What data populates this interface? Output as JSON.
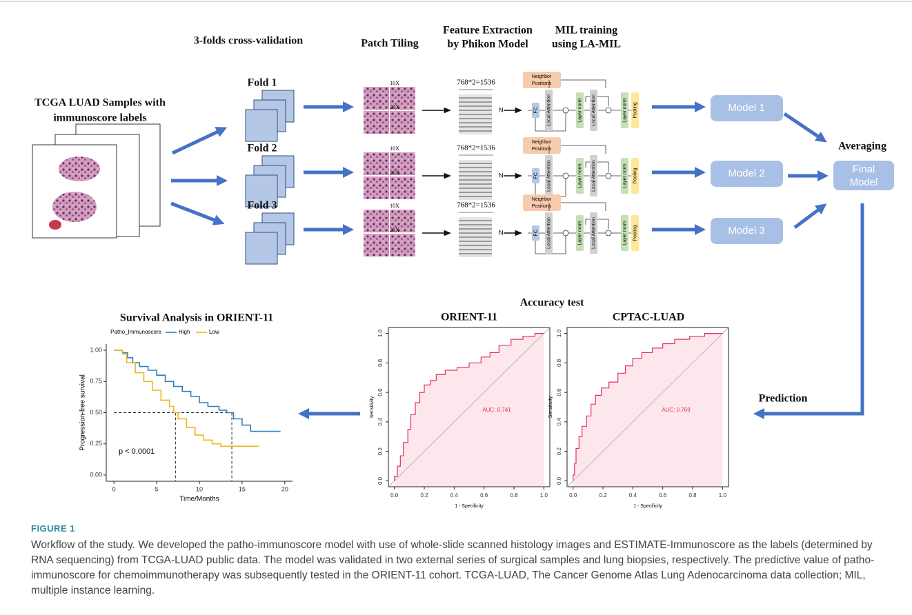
{
  "header": {
    "cv_title": "3-folds cross-validation",
    "patch_tiling": "Patch Tiling",
    "feature_extraction": [
      "Feature Extraction",
      "by Phikon Model"
    ],
    "mil_training": [
      "MIL training",
      "using LA-MIL"
    ]
  },
  "input": [
    "TCGA LUAD Samples with",
    "immunoscore labels"
  ],
  "folds": [
    "Fold 1",
    "Fold 2",
    "Fold 3"
  ],
  "magnifications": [
    "10X",
    "20X"
  ],
  "feature_dim": "768*2=1536",
  "feature_rows": "N",
  "mil_block": {
    "neighbor": [
      "Neighbor",
      "Positions"
    ],
    "fc": "FC",
    "attention": "Local Attention",
    "norm": "Layer norm",
    "pooling": "Pooling"
  },
  "models": [
    "Model 1",
    "Model 2",
    "Model 3"
  ],
  "averaging": "Averaging",
  "final_model": [
    "Final",
    "Model"
  ],
  "prediction": "Prediction",
  "accuracy_test": "Accuracy test",
  "chart_data": [
    {
      "type": "line",
      "title": "Survival Analysis in ORIENT-11",
      "legend_title": "Patho_Immunoscore",
      "legend": "top",
      "x_label": "Time/Months",
      "y_label": "Progression-free survival",
      "annotation": "p < 0.0001",
      "xlim": [
        -0.9,
        20.9
      ],
      "ylim": [
        -0.05,
        1.05
      ],
      "xticks": [
        0,
        5,
        10,
        15,
        20
      ],
      "yticks": [
        {
          "value": 0,
          "label": "0.00"
        },
        {
          "value": 0.25,
          "label": "0.25"
        },
        {
          "value": 0.5,
          "label": "0.50"
        },
        {
          "value": 0.75,
          "label": "0.75"
        },
        {
          "value": 1,
          "label": "1.00"
        }
      ],
      "reference_lines": {
        "y": 0.5,
        "x": [
          7.2,
          13.8
        ]
      },
      "series": [
        {
          "name": "High",
          "color": "#2e7fc0",
          "x": [
            0,
            1,
            1,
            1.6,
            1.6,
            2.2,
            2.2,
            3,
            3,
            4,
            4,
            5,
            5,
            6,
            6,
            7,
            7,
            8,
            8,
            9,
            9,
            10,
            10,
            11,
            11,
            12.3,
            12.3,
            13.2,
            13.2,
            14,
            14,
            15,
            15,
            16,
            16,
            19.5
          ],
          "values": [
            1,
            1,
            0.98,
            0.98,
            0.94,
            0.94,
            0.9,
            0.9,
            0.87,
            0.87,
            0.84,
            0.84,
            0.8,
            0.8,
            0.75,
            0.75,
            0.71,
            0.71,
            0.67,
            0.67,
            0.63,
            0.63,
            0.58,
            0.58,
            0.55,
            0.55,
            0.52,
            0.52,
            0.5,
            0.5,
            0.45,
            0.45,
            0.4,
            0.4,
            0.35,
            0.35
          ]
        },
        {
          "name": "Low",
          "color": "#e8b81c",
          "x": [
            0,
            1,
            1,
            1.5,
            1.5,
            2.5,
            2.5,
            3.5,
            3.5,
            4.5,
            4.5,
            5.5,
            5.5,
            6.5,
            6.5,
            7,
            7,
            7.5,
            7.5,
            8.5,
            8.5,
            9.5,
            9.5,
            10.5,
            10.5,
            11.5,
            11.5,
            12.5,
            12.5,
            17
          ],
          "values": [
            1,
            1,
            0.97,
            0.97,
            0.9,
            0.9,
            0.82,
            0.82,
            0.75,
            0.75,
            0.68,
            0.68,
            0.6,
            0.6,
            0.55,
            0.55,
            0.5,
            0.5,
            0.45,
            0.45,
            0.38,
            0.38,
            0.32,
            0.32,
            0.28,
            0.28,
            0.25,
            0.25,
            0.23,
            0.23
          ]
        }
      ]
    },
    {
      "type": "line",
      "title": "ORIENT-11",
      "x_label": "1 - Specificity",
      "y_label": "Sensitivity",
      "annotation": "AUC: 0.741",
      "xlim": [
        -0.04,
        1.04
      ],
      "ylim": [
        -0.04,
        1.04
      ],
      "xticks": [
        {
          "value": 0,
          "label": "0.0"
        },
        0.2,
        0.4,
        0.6,
        0.8,
        {
          "value": 1,
          "label": "1.0"
        }
      ],
      "yticks": [
        {
          "value": 0,
          "label": "0.0"
        },
        0.2,
        0.4,
        0.6,
        0.8,
        {
          "value": 1,
          "label": "1.0"
        }
      ],
      "series": [
        {
          "color": "#e0325c",
          "x": [
            0,
            0,
            0.02,
            0.02,
            0.04,
            0.04,
            0.06,
            0.06,
            0.09,
            0.09,
            0.11,
            0.11,
            0.14,
            0.14,
            0.17,
            0.17,
            0.2,
            0.2,
            0.24,
            0.24,
            0.28,
            0.28,
            0.34,
            0.34,
            0.42,
            0.42,
            0.5,
            0.5,
            0.58,
            0.58,
            0.64,
            0.64,
            0.7,
            0.7,
            0.78,
            0.78,
            0.86,
            0.86,
            0.94,
            0.94,
            1
          ],
          "values": [
            0,
            0.03,
            0.03,
            0.1,
            0.1,
            0.17,
            0.17,
            0.26,
            0.26,
            0.35,
            0.35,
            0.45,
            0.45,
            0.53,
            0.53,
            0.6,
            0.6,
            0.65,
            0.65,
            0.68,
            0.68,
            0.72,
            0.72,
            0.75,
            0.75,
            0.77,
            0.77,
            0.8,
            0.8,
            0.84,
            0.84,
            0.87,
            0.87,
            0.92,
            0.92,
            0.96,
            0.96,
            0.98,
            0.98,
            1,
            1
          ]
        }
      ]
    },
    {
      "type": "line",
      "title": "CPTAC-LUAD",
      "x_label": "1 - Specificity",
      "y_label": "Sensitivity",
      "annotation": "AUC: 0.769",
      "xlim": [
        -0.04,
        1.04
      ],
      "ylim": [
        -0.04,
        1.04
      ],
      "xticks": [
        {
          "value": 0,
          "label": "0.0"
        },
        0.2,
        0.4,
        0.6,
        0.8,
        {
          "value": 1,
          "label": "1.0"
        }
      ],
      "yticks": [
        {
          "value": 0,
          "label": "0.0"
        },
        0.2,
        0.4,
        0.6,
        0.8,
        {
          "value": 1,
          "label": "1.0"
        }
      ],
      "series": [
        {
          "color": "#e0325c",
          "x": [
            0,
            0,
            0.01,
            0.01,
            0.02,
            0.02,
            0.04,
            0.04,
            0.06,
            0.06,
            0.09,
            0.09,
            0.12,
            0.12,
            0.15,
            0.15,
            0.19,
            0.19,
            0.24,
            0.24,
            0.3,
            0.3,
            0.35,
            0.35,
            0.4,
            0.4,
            0.46,
            0.46,
            0.53,
            0.53,
            0.6,
            0.6,
            0.68,
            0.68,
            0.78,
            0.78,
            0.88,
            0.88,
            1
          ],
          "values": [
            0,
            0.04,
            0.04,
            0.12,
            0.12,
            0.22,
            0.22,
            0.3,
            0.3,
            0.37,
            0.37,
            0.44,
            0.44,
            0.52,
            0.52,
            0.58,
            0.58,
            0.63,
            0.63,
            0.67,
            0.67,
            0.73,
            0.73,
            0.78,
            0.78,
            0.83,
            0.83,
            0.87,
            0.87,
            0.9,
            0.9,
            0.93,
            0.93,
            0.96,
            0.96,
            0.98,
            0.98,
            1,
            1
          ]
        }
      ]
    }
  ],
  "caption": {
    "label": "FIGURE 1",
    "text": "Workflow of the study. We developed the patho-immunoscore model with use of whole-slide scanned histology images and ESTIMATE-Immunoscore as the labels (determined by RNA sequencing) from TCGA-LUAD public data. The model was validated in two external series of surgical samples and lung biopsies, respectively. The predictive value of patho-immunoscore for chemoimmunotherapy was subsequently tested in the ORIENT-11 cohort. TCGA-LUAD, The Cancer Genome Atlas Lung Adenocarcinoma data collection; MIL, multiple instance learning."
  }
}
